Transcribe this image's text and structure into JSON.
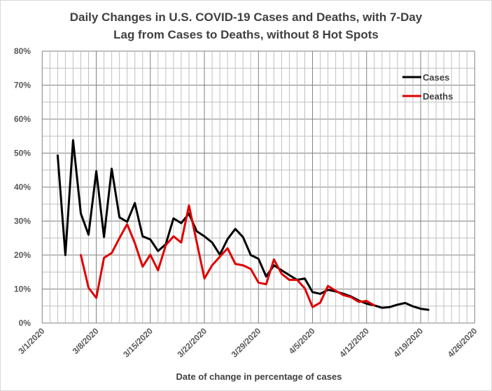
{
  "chart_data": {
    "type": "line",
    "title_line1": "Daily Changes in U.S. COVID-19 Cases and Deaths, with 7-Day",
    "title_line2": "Lag from Cases to Deaths, without 8 Hot Spots",
    "xlabel": "Date of change in percentage of cases",
    "ylabel": "",
    "x_start": "3/1/2020",
    "x_end": "4/26/2020",
    "x_range_days": [
      0,
      56
    ],
    "x_ticks": [
      "3/1/2020",
      "3/8/2020",
      "3/15/2020",
      "3/22/2020",
      "3/29/2020",
      "4/5/2020",
      "4/12/2020",
      "4/19/2020",
      "4/26/2020"
    ],
    "ylim": [
      0,
      80
    ],
    "y_ticks": [
      "0%",
      "10%",
      "20%",
      "30%",
      "40%",
      "50%",
      "60%",
      "70%",
      "80%"
    ],
    "grid": true,
    "legend_position": "top-right",
    "series": [
      {
        "name": "Cases",
        "color": "#000000",
        "start_day_offset": 2,
        "dates": [
          "3/3",
          "3/4",
          "3/5",
          "3/6",
          "3/7",
          "3/8",
          "3/9",
          "3/10",
          "3/11",
          "3/12",
          "3/13",
          "3/14",
          "3/15",
          "3/16",
          "3/17",
          "3/18",
          "3/19",
          "3/20",
          "3/21",
          "3/22",
          "3/23",
          "3/24",
          "3/25",
          "3/26",
          "3/27",
          "3/28",
          "3/29",
          "3/30",
          "3/31",
          "4/1",
          "4/2",
          "4/3",
          "4/4",
          "4/5",
          "4/6",
          "4/7",
          "4/8",
          "4/9",
          "4/10",
          "4/11",
          "4/12",
          "4/13",
          "4/14",
          "4/15",
          "4/16",
          "4/17",
          "4/18",
          "4/19",
          "4/20"
        ],
        "values": [
          49.3,
          20.0,
          53.8,
          32.2,
          26.0,
          44.7,
          25.3,
          45.4,
          31.1,
          29.8,
          35.3,
          25.5,
          24.6,
          21.2,
          23.2,
          30.8,
          29.4,
          32.2,
          27.0,
          25.5,
          23.7,
          20.1,
          24.7,
          27.7,
          25.3,
          20.0,
          18.9,
          13.7,
          17.0,
          15.5,
          14.1,
          12.7,
          13.1,
          9.1,
          8.6,
          9.8,
          9.3,
          8.6,
          7.8,
          6.6,
          5.7,
          5.2,
          4.5,
          4.7,
          5.4,
          5.9,
          4.9,
          4.2,
          3.9
        ]
      },
      {
        "name": "Deaths",
        "color": "#e00000",
        "start_day_offset": 5,
        "dates": [
          "3/6",
          "3/7",
          "3/8",
          "3/9",
          "3/10",
          "3/11",
          "3/12",
          "3/13",
          "3/14",
          "3/15",
          "3/16",
          "3/17",
          "3/18",
          "3/19",
          "3/20",
          "3/21",
          "3/22",
          "3/23",
          "3/24",
          "3/25",
          "3/26",
          "3/27",
          "3/28",
          "3/29",
          "3/30",
          "3/31",
          "4/1",
          "4/2",
          "4/3",
          "4/4",
          "4/5",
          "4/6",
          "4/7",
          "4/8",
          "4/9",
          "4/10",
          "4/11",
          "4/12",
          "4/13"
        ],
        "values": [
          20.0,
          10.4,
          7.4,
          19.2,
          20.6,
          25.0,
          29.1,
          23.5,
          16.6,
          20.1,
          15.5,
          22.9,
          25.5,
          23.7,
          34.6,
          23.9,
          13.1,
          17.0,
          19.5,
          22.0,
          17.4,
          17.0,
          15.9,
          11.9,
          11.4,
          18.7,
          14.5,
          12.7,
          12.7,
          10.2,
          4.7,
          6.0,
          10.9,
          9.5,
          8.2,
          7.6,
          6.2,
          6.5,
          5.2
        ]
      }
    ]
  }
}
